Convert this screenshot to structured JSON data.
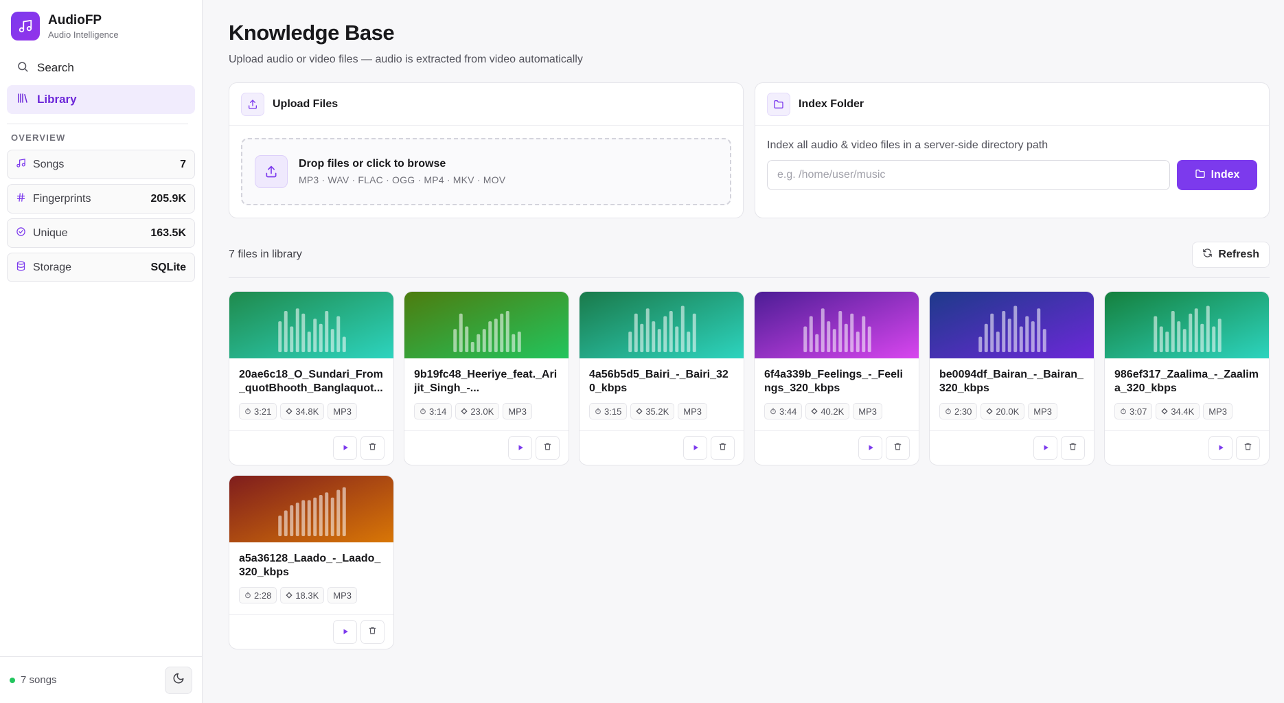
{
  "app": {
    "name": "AudioFP",
    "tagline": "Audio Intelligence"
  },
  "nav": [
    {
      "label": "Search",
      "icon": "search-icon",
      "active": false
    },
    {
      "label": "Library",
      "icon": "library-icon",
      "active": true
    }
  ],
  "overview": {
    "label": "OVERVIEW",
    "stats": [
      {
        "label": "Songs",
        "value": "7",
        "icon": "music-note-icon"
      },
      {
        "label": "Fingerprints",
        "value": "205.9K",
        "icon": "hash-icon"
      },
      {
        "label": "Unique",
        "value": "163.5K",
        "icon": "check-circle-icon"
      },
      {
        "label": "Storage",
        "value": "SQLite",
        "icon": "database-icon"
      }
    ]
  },
  "footer": {
    "status": "7 songs",
    "status_color": "#22c55e"
  },
  "header": {
    "title": "Knowledge Base",
    "subtitle": "Upload audio or video files — audio is extracted from video automatically"
  },
  "upload": {
    "title": "Upload Files",
    "drop_title": "Drop files or click to browse",
    "formats": "MP3 · WAV · FLAC · OGG · MP4 · MKV · MOV"
  },
  "index": {
    "title": "Index Folder",
    "description": "Index all audio & video files in a server-side directory path",
    "placeholder": "e.g. /home/user/music",
    "button": "Index"
  },
  "library": {
    "count_label": "7 files in library",
    "refresh_label": "Refresh",
    "files": [
      {
        "title": "20ae6c18_O_Sundari_From_quotBhooth_Banglaquot...",
        "duration": "3:21",
        "fingerprints": "34.8K",
        "format": "MP3",
        "gradient": [
          "#1f8a4c",
          "#2dd4bf"
        ]
      },
      {
        "title": "9b19fc48_Heeriye_feat._Arijit_Singh_-...",
        "duration": "3:14",
        "fingerprints": "23.0K",
        "format": "MP3",
        "gradient": [
          "#4d7c0f",
          "#22c55e"
        ]
      },
      {
        "title": "4a56b5d5_Bairi_-_Bairi_320_kbps",
        "duration": "3:15",
        "fingerprints": "35.2K",
        "format": "MP3",
        "gradient": [
          "#1a7a4a",
          "#2dd4bf"
        ]
      },
      {
        "title": "6f4a339b_Feelings_-_Feelings_320_kbps",
        "duration": "3:44",
        "fingerprints": "40.2K",
        "format": "MP3",
        "gradient": [
          "#4c1d95",
          "#d946ef"
        ]
      },
      {
        "title": "be0094df_Bairan_-_Bairan_320_kbps",
        "duration": "2:30",
        "fingerprints": "20.0K",
        "format": "MP3",
        "gradient": [
          "#1e3a8a",
          "#6d28d9"
        ]
      },
      {
        "title": "986ef317_Zaalima_-_Zaalima_320_kbps",
        "duration": "3:07",
        "fingerprints": "34.4K",
        "format": "MP3",
        "gradient": [
          "#15803d",
          "#2dd4bf"
        ]
      },
      {
        "title": "a5a36128_Laado_-_Laado_320_kbps",
        "duration": "2:28",
        "fingerprints": "18.3K",
        "format": "MP3",
        "gradient": [
          "#7f1d1d",
          "#d97706"
        ]
      }
    ]
  }
}
